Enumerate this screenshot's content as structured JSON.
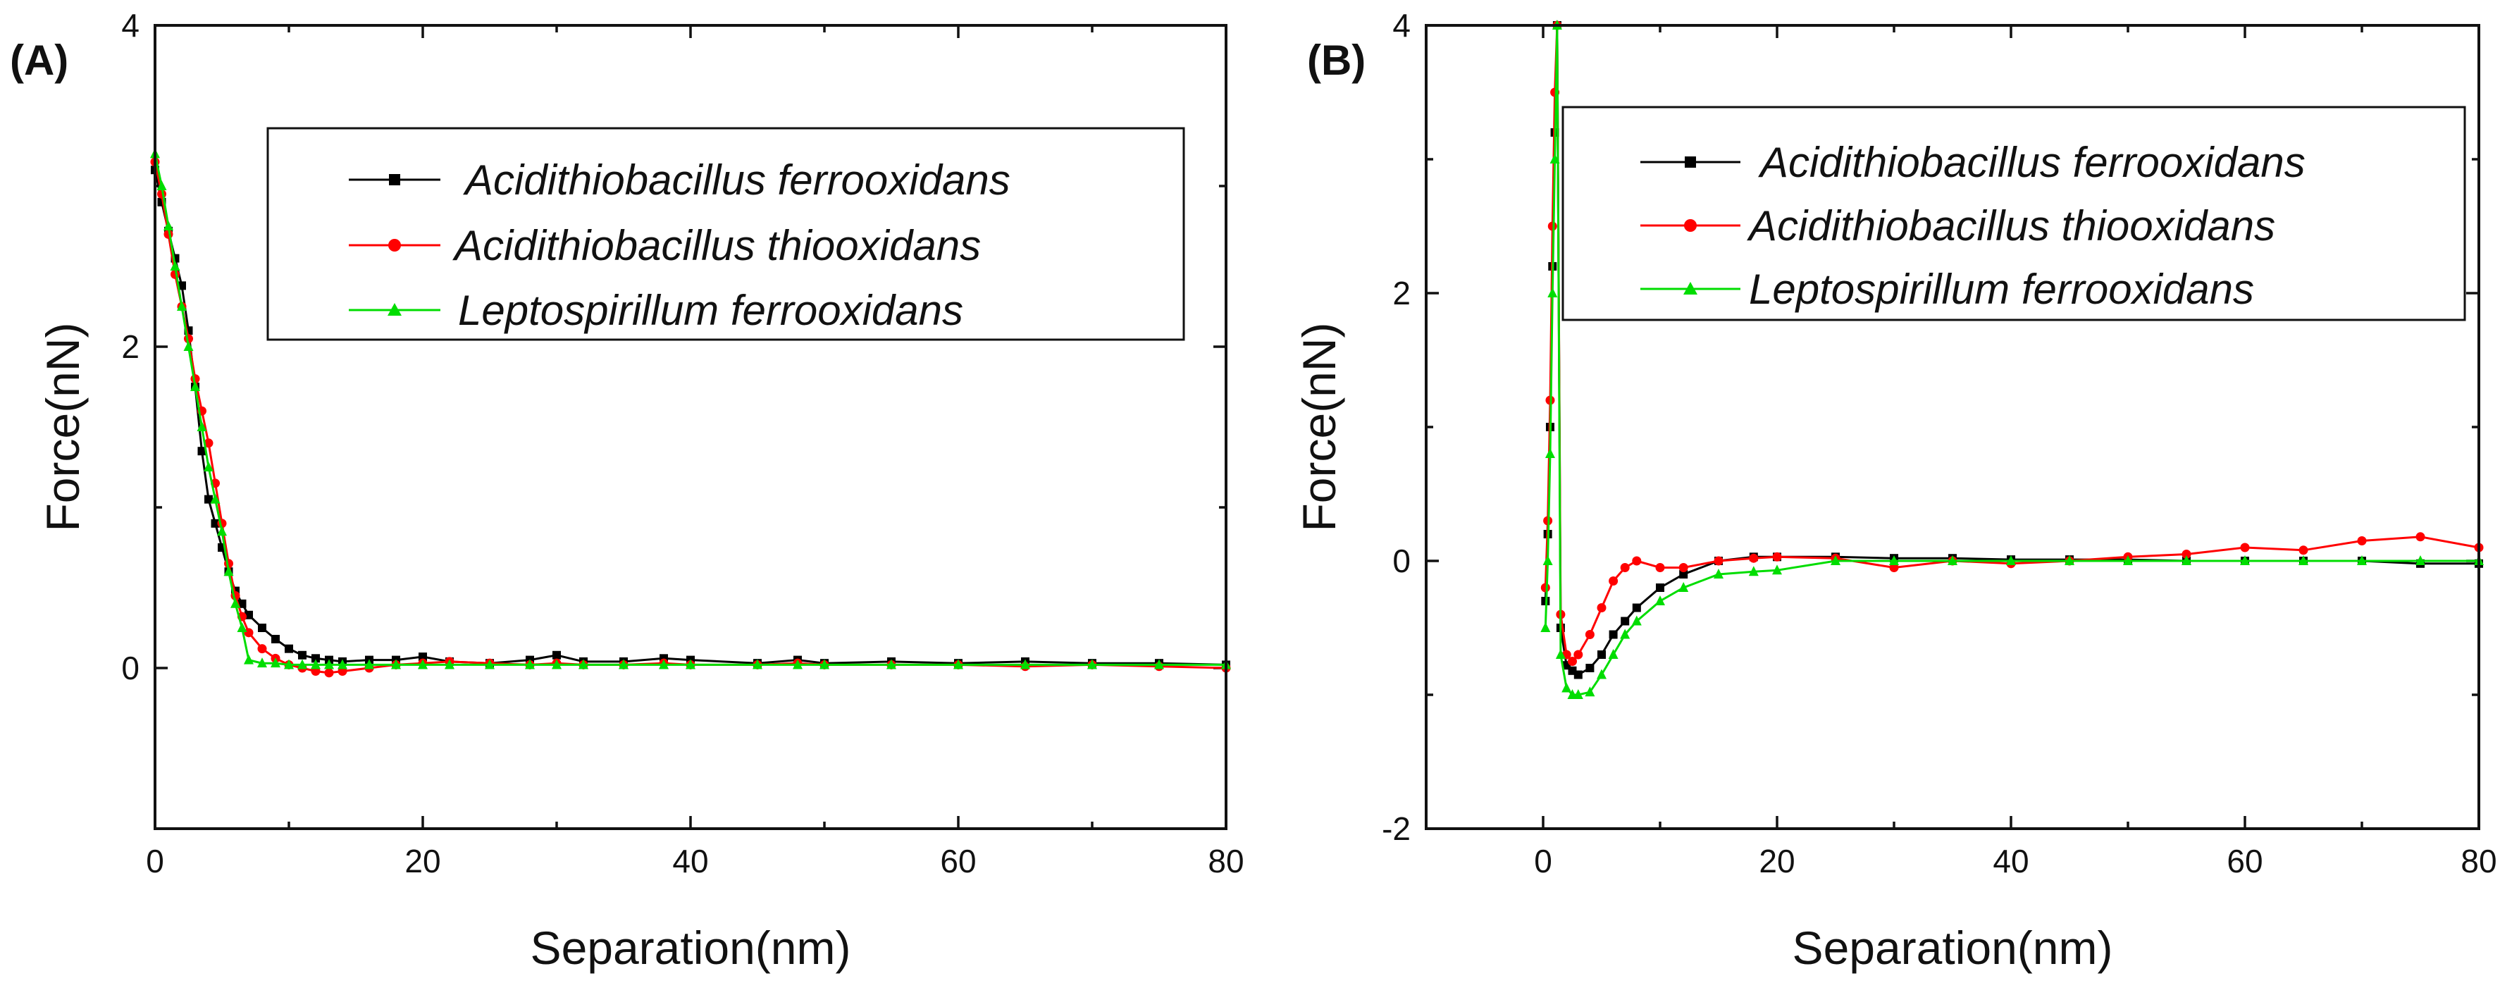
{
  "chart_data": [
    {
      "type": "line",
      "panel_label": "(A)",
      "xlabel": "Separation(nm)",
      "ylabel": "Force(nN)",
      "xlim": [
        0,
        80
      ],
      "ylim": [
        -1,
        4
      ],
      "xticks": [
        0,
        20,
        40,
        60,
        80
      ],
      "yticks": [
        0,
        2,
        4
      ],
      "legend_position": "top-right",
      "series": [
        {
          "name": "Acidithiobacillus ferrooxidans",
          "color": "#000000",
          "marker": "square",
          "x": [
            0,
            0.5,
            1,
            1.5,
            2,
            2.5,
            3,
            3.5,
            4,
            4.5,
            5,
            5.5,
            6,
            6.5,
            7,
            8,
            9,
            10,
            11,
            12,
            13,
            14,
            16,
            18,
            20,
            22,
            25,
            28,
            30,
            32,
            35,
            38,
            40,
            45,
            48,
            50,
            55,
            60,
            65,
            70,
            75,
            80
          ],
          "y": [
            3.1,
            2.9,
            2.72,
            2.55,
            2.38,
            2.1,
            1.75,
            1.35,
            1.05,
            0.9,
            0.75,
            0.6,
            0.48,
            0.4,
            0.33,
            0.25,
            0.18,
            0.12,
            0.08,
            0.06,
            0.05,
            0.04,
            0.05,
            0.05,
            0.07,
            0.04,
            0.03,
            0.05,
            0.08,
            0.04,
            0.04,
            0.06,
            0.05,
            0.03,
            0.05,
            0.03,
            0.04,
            0.03,
            0.04,
            0.03,
            0.03,
            0.02
          ]
        },
        {
          "name": "Acidithiobacillus thiooxidans",
          "color": "#ff0000",
          "marker": "circle",
          "x": [
            0,
            0.5,
            1,
            1.5,
            2,
            2.5,
            3,
            3.5,
            4,
            4.5,
            5,
            5.5,
            6,
            6.5,
            7,
            8,
            9,
            10,
            11,
            12,
            13,
            14,
            16,
            18,
            20,
            22,
            25,
            28,
            30,
            32,
            35,
            38,
            40,
            45,
            48,
            50,
            55,
            60,
            65,
            70,
            75,
            80
          ],
          "y": [
            3.15,
            2.95,
            2.7,
            2.45,
            2.25,
            2.05,
            1.8,
            1.6,
            1.4,
            1.15,
            0.9,
            0.65,
            0.45,
            0.32,
            0.22,
            0.12,
            0.06,
            0.02,
            0.0,
            -0.02,
            -0.03,
            -0.02,
            0.0,
            0.02,
            0.03,
            0.04,
            0.03,
            0.02,
            0.03,
            0.02,
            0.02,
            0.03,
            0.02,
            0.02,
            0.03,
            0.02,
            0.02,
            0.02,
            0.01,
            0.02,
            0.01,
            0.0
          ]
        },
        {
          "name": "Leptospirillum ferrooxidans",
          "color": "#00dd00",
          "marker": "triangle",
          "x": [
            0,
            0.5,
            1,
            1.5,
            2,
            2.5,
            3,
            3.5,
            4,
            4.5,
            5,
            5.5,
            6,
            6.5,
            7,
            8,
            9,
            10,
            11,
            12,
            13,
            14,
            16,
            18,
            20,
            22,
            25,
            28,
            30,
            32,
            35,
            38,
            40,
            45,
            48,
            50,
            55,
            60,
            65,
            70,
            75,
            80
          ],
          "y": [
            3.2,
            3.0,
            2.75,
            2.5,
            2.25,
            2.0,
            1.75,
            1.5,
            1.25,
            1.05,
            0.85,
            0.6,
            0.4,
            0.25,
            0.05,
            0.03,
            0.03,
            0.02,
            0.02,
            0.02,
            0.02,
            0.02,
            0.02,
            0.02,
            0.02,
            0.02,
            0.02,
            0.02,
            0.02,
            0.02,
            0.02,
            0.02,
            0.02,
            0.02,
            0.02,
            0.02,
            0.02,
            0.02,
            0.02,
            0.02,
            0.02,
            0.02
          ]
        }
      ]
    },
    {
      "type": "line",
      "panel_label": "(B)",
      "xlabel": "Separation(nm)",
      "ylabel": "Force(nN)",
      "xlim": [
        -10,
        80
      ],
      "ylim": [
        -2,
        4
      ],
      "xticks": [
        0,
        20,
        40,
        60,
        80
      ],
      "yticks": [
        -2,
        0,
        2,
        4
      ],
      "legend_position": "top-right",
      "series": [
        {
          "name": "Acidithiobacillus ferrooxidans",
          "color": "#000000",
          "marker": "square",
          "x": [
            0.2,
            0.4,
            0.6,
            0.8,
            1.0,
            1.2,
            1.5,
            2,
            2.5,
            3,
            4,
            5,
            6,
            7,
            8,
            10,
            12,
            15,
            18,
            20,
            25,
            30,
            35,
            40,
            45,
            50,
            55,
            60,
            65,
            70,
            75,
            80
          ],
          "y": [
            -0.3,
            0.2,
            1.0,
            2.2,
            3.2,
            4.0,
            -0.5,
            -0.78,
            -0.82,
            -0.85,
            -0.8,
            -0.7,
            -0.55,
            -0.45,
            -0.35,
            -0.2,
            -0.1,
            0.0,
            0.03,
            0.03,
            0.03,
            0.02,
            0.02,
            0.01,
            0.01,
            0.01,
            0.0,
            0.0,
            0.0,
            0.0,
            -0.02,
            -0.02
          ]
        },
        {
          "name": "Acidithiobacillus thiooxidans",
          "color": "#ff0000",
          "marker": "circle",
          "x": [
            0.2,
            0.4,
            0.6,
            0.8,
            1.0,
            1.2,
            1.5,
            2,
            2.5,
            3,
            4,
            5,
            6,
            7,
            8,
            10,
            12,
            15,
            18,
            20,
            25,
            30,
            35,
            40,
            45,
            50,
            55,
            60,
            65,
            70,
            75,
            80
          ],
          "y": [
            -0.2,
            0.3,
            1.2,
            2.5,
            3.5,
            4.0,
            -0.4,
            -0.7,
            -0.75,
            -0.7,
            -0.55,
            -0.35,
            -0.15,
            -0.05,
            0.0,
            -0.05,
            -0.05,
            0.0,
            0.02,
            0.03,
            0.02,
            -0.05,
            0.0,
            -0.02,
            0.0,
            0.03,
            0.05,
            0.1,
            0.08,
            0.15,
            0.18,
            0.1
          ]
        },
        {
          "name": "Leptospirillum ferrooxidans",
          "color": "#00dd00",
          "marker": "triangle",
          "x": [
            0.2,
            0.4,
            0.6,
            0.8,
            1.0,
            1.2,
            1.5,
            2,
            2.5,
            3,
            4,
            5,
            6,
            7,
            8,
            10,
            12,
            15,
            18,
            20,
            25,
            30,
            35,
            40,
            45,
            50,
            55,
            60,
            65,
            70,
            75,
            80
          ],
          "y": [
            -0.5,
            0.0,
            0.8,
            2.0,
            3.0,
            4.0,
            -0.7,
            -0.95,
            -1.0,
            -1.0,
            -0.98,
            -0.85,
            -0.7,
            -0.55,
            -0.45,
            -0.3,
            -0.2,
            -0.1,
            -0.08,
            -0.07,
            0.0,
            0.0,
            0.0,
            0.0,
            0.0,
            0.0,
            0.0,
            0.0,
            0.0,
            0.0,
            0.0,
            0.0
          ]
        }
      ]
    }
  ]
}
